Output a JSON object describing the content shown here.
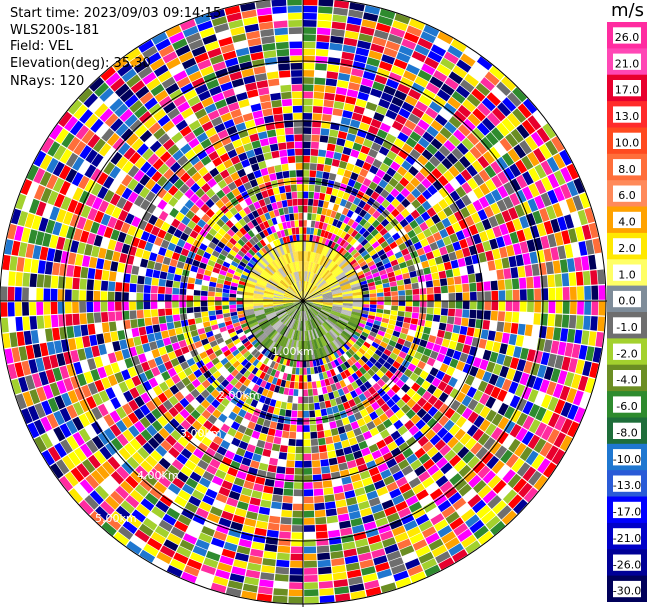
{
  "header": {
    "start_time": "Start time: 2023/09/03 09:14:15",
    "instrument": "WLS200s-181",
    "field": "Field: VEL",
    "elevation": "Elevation(deg): 35.30",
    "nrays": "NRays: 120"
  },
  "colorbar": {
    "unit": "m/s",
    "ticks": [
      "26.0",
      "21.0",
      "17.0",
      "13.0",
      "10.0",
      "8.0",
      "6.0",
      "4.0",
      "2.0",
      "1.0",
      "0.0",
      "-1.0",
      "-2.0",
      "-4.0",
      "-6.0",
      "-8.0",
      "-10.0",
      "-13.0",
      "-17.0",
      "-21.0",
      "-26.0",
      "-30.0"
    ],
    "colors": [
      "#ff2ca0",
      "#ff47b5",
      "#e8002e",
      "#ff2b2b",
      "#ff4a1f",
      "#ff6e3a",
      "#ff8a5a",
      "#ffa200",
      "#ffe800",
      "#ffff66",
      "#7e8c99",
      "#6e6e6e",
      "#a3d12e",
      "#6b8e23",
      "#2e8b2e",
      "#1e6e3a",
      "#1f77d0",
      "#2a5bd7",
      "#0000ff",
      "#0000c8",
      "#000096",
      "#00005a"
    ]
  },
  "ppi": {
    "range_labels": {
      "r1": "1.00km",
      "r2": "2.00km",
      "r3": "3.00km",
      "r4": "4.00km",
      "r5": "5.00km"
    },
    "near_colors": [
      "#ffff33",
      "#ffe14d",
      "#f0c020",
      "#bfbfbf",
      "#9a9a9a",
      "#88bb33",
      "#6b9e2a",
      "#4f8a2a"
    ],
    "far_colors": [
      "#ff00ff",
      "#ff2ca0",
      "#0000ff",
      "#00005a",
      "#ffff00",
      "#ff0000",
      "#ffa200",
      "#2e8b2e",
      "#1f77d0",
      "#6e6e6e",
      "#ff6e3a",
      "#e8002e",
      "#6b8e23",
      "#000096",
      "#a3d12e",
      "#ffe800",
      "#ffffff"
    ]
  }
}
